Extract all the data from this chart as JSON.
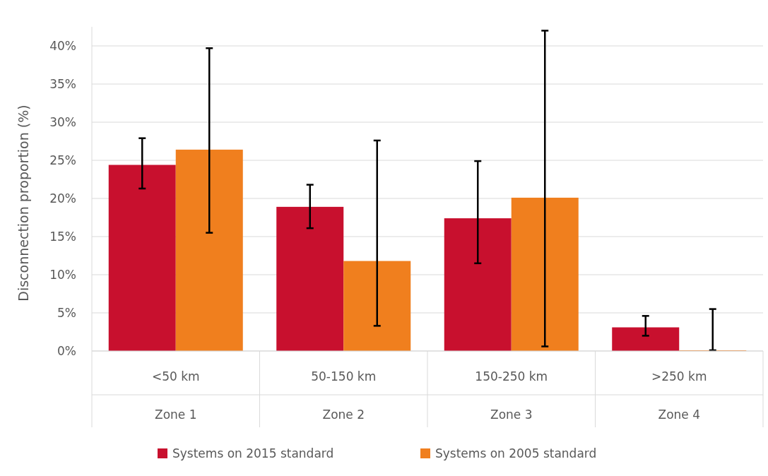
{
  "chart_data": {
    "type": "bar",
    "ylabel": "Disconnection proportion (%)",
    "categories": [
      "<50 km\nZone 1",
      "50-150 km\nZone 2",
      "150-250 km\nZone 3",
      ">250 km\nZone 4"
    ],
    "series": [
      {
        "name": "Systems on 2015 standard",
        "color": "#c8102e",
        "values": [
          24.4,
          18.9,
          17.4,
          3.1
        ],
        "errors": [
          [
            21.3,
            27.9
          ],
          [
            16.1,
            21.8
          ],
          [
            11.5,
            24.9
          ],
          [
            2.0,
            4.6
          ]
        ]
      },
      {
        "name": "Systems on 2005 standard",
        "color": "#f07f1e",
        "values": [
          26.4,
          11.8,
          20.1,
          0
        ],
        "errors": [
          [
            15.5,
            39.7
          ],
          [
            3.3,
            27.6
          ],
          [
            0.6,
            42.0
          ],
          [
            0.1,
            5.5
          ]
        ]
      }
    ],
    "ylim": [
      0,
      42.5
    ],
    "yticks": [
      {
        "value": 0,
        "label": "0%"
      },
      {
        "value": 5,
        "label": "5%"
      },
      {
        "value": 10,
        "label": "10%"
      },
      {
        "value": 15,
        "label": "15%"
      },
      {
        "value": 20,
        "label": "20%"
      },
      {
        "value": 25,
        "label": "25%"
      },
      {
        "value": 30,
        "label": "30%"
      },
      {
        "value": 35,
        "label": "35%"
      },
      {
        "value": 40,
        "label": "40%"
      }
    ],
    "grid": "y",
    "legend": "bottom"
  }
}
